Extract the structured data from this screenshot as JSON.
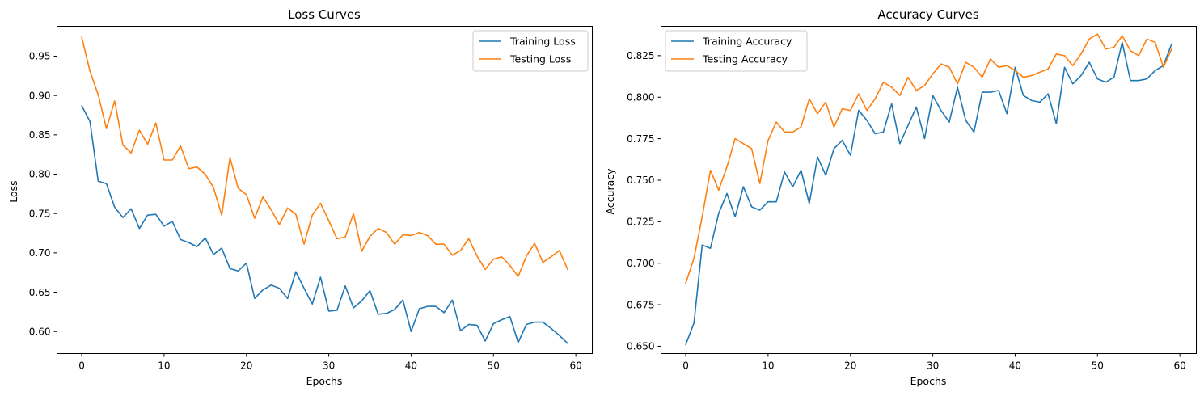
{
  "chart_data": [
    {
      "type": "line",
      "title": "Loss Curves",
      "xlabel": "Epochs",
      "ylabel": "Loss",
      "xlim": [
        -3,
        62
      ],
      "ylim": [
        0.572,
        0.988
      ],
      "xticks": [
        0,
        10,
        20,
        30,
        40,
        50,
        60
      ],
      "yticks": [
        0.6,
        0.65,
        0.7,
        0.75,
        0.8,
        0.85,
        0.9,
        0.95
      ],
      "ytick_decimals": 2,
      "grid": false,
      "legend_position": "top-right",
      "x": [
        0,
        1,
        2,
        3,
        4,
        5,
        6,
        7,
        8,
        9,
        10,
        11,
        12,
        13,
        14,
        15,
        16,
        17,
        18,
        19,
        20,
        21,
        22,
        23,
        24,
        25,
        26,
        27,
        28,
        29,
        30,
        31,
        32,
        33,
        34,
        35,
        36,
        37,
        38,
        39,
        40,
        41,
        42,
        43,
        44,
        45,
        46,
        47,
        48,
        49,
        50,
        51,
        52,
        53,
        54,
        55,
        56,
        57,
        58,
        59
      ],
      "series": [
        {
          "name": "Training Loss",
          "color": "#1f77b4",
          "values": [
            0.887,
            0.867,
            0.791,
            0.788,
            0.758,
            0.745,
            0.756,
            0.731,
            0.748,
            0.749,
            0.734,
            0.74,
            0.717,
            0.713,
            0.708,
            0.719,
            0.698,
            0.706,
            0.68,
            0.677,
            0.687,
            0.642,
            0.653,
            0.659,
            0.655,
            0.642,
            0.676,
            0.655,
            0.635,
            0.669,
            0.626,
            0.627,
            0.658,
            0.63,
            0.639,
            0.652,
            0.622,
            0.623,
            0.628,
            0.64,
            0.6,
            0.629,
            0.632,
            0.632,
            0.624,
            0.64,
            0.601,
            0.609,
            0.608,
            0.588,
            0.61,
            0.615,
            0.619,
            0.586,
            0.609,
            0.612,
            0.612,
            0.604,
            0.595,
            0.585
          ]
        },
        {
          "name": "Testing Loss",
          "color": "#ff7f0e",
          "values": [
            0.974,
            0.931,
            0.901,
            0.858,
            0.893,
            0.837,
            0.827,
            0.856,
            0.838,
            0.865,
            0.818,
            0.818,
            0.836,
            0.807,
            0.809,
            0.8,
            0.783,
            0.748,
            0.821,
            0.782,
            0.774,
            0.744,
            0.771,
            0.755,
            0.736,
            0.757,
            0.749,
            0.711,
            0.748,
            0.763,
            0.741,
            0.718,
            0.72,
            0.75,
            0.702,
            0.721,
            0.731,
            0.726,
            0.711,
            0.723,
            0.722,
            0.726,
            0.722,
            0.711,
            0.711,
            0.697,
            0.703,
            0.718,
            0.696,
            0.679,
            0.692,
            0.695,
            0.684,
            0.67,
            0.696,
            0.712,
            0.688,
            0.695,
            0.703,
            0.679
          ]
        }
      ]
    },
    {
      "type": "line",
      "title": "Accuracy Curves",
      "xlabel": "Epochs",
      "ylabel": "Accuracy",
      "xlim": [
        -3,
        62
      ],
      "ylim": [
        0.6456,
        0.8427
      ],
      "xticks": [
        0,
        10,
        20,
        30,
        40,
        50,
        60
      ],
      "yticks": [
        0.65,
        0.675,
        0.7,
        0.725,
        0.75,
        0.775,
        0.8,
        0.825
      ],
      "ytick_decimals": 3,
      "grid": false,
      "legend_position": "top-left",
      "x": [
        0,
        1,
        2,
        3,
        4,
        5,
        6,
        7,
        8,
        9,
        10,
        11,
        12,
        13,
        14,
        15,
        16,
        17,
        18,
        19,
        20,
        21,
        22,
        23,
        24,
        25,
        26,
        27,
        28,
        29,
        30,
        31,
        32,
        33,
        34,
        35,
        36,
        37,
        38,
        39,
        40,
        41,
        42,
        43,
        44,
        45,
        46,
        47,
        48,
        49,
        50,
        51,
        52,
        53,
        54,
        55,
        56,
        57,
        58,
        59
      ],
      "series": [
        {
          "name": "Training Accuracy",
          "color": "#1f77b4",
          "values": [
            0.651,
            0.664,
            0.711,
            0.709,
            0.73,
            0.742,
            0.728,
            0.746,
            0.734,
            0.732,
            0.737,
            0.737,
            0.755,
            0.746,
            0.756,
            0.736,
            0.764,
            0.753,
            0.769,
            0.774,
            0.765,
            0.792,
            0.786,
            0.778,
            0.779,
            0.796,
            0.772,
            0.783,
            0.794,
            0.775,
            0.801,
            0.792,
            0.785,
            0.806,
            0.786,
            0.779,
            0.803,
            0.803,
            0.804,
            0.79,
            0.818,
            0.801,
            0.798,
            0.797,
            0.802,
            0.784,
            0.818,
            0.808,
            0.813,
            0.821,
            0.811,
            0.809,
            0.812,
            0.833,
            0.81,
            0.81,
            0.811,
            0.816,
            0.819,
            0.832
          ]
        },
        {
          "name": "Testing Accuracy",
          "color": "#ff7f0e",
          "values": [
            0.688,
            0.703,
            0.728,
            0.756,
            0.744,
            0.758,
            0.775,
            0.772,
            0.769,
            0.748,
            0.774,
            0.785,
            0.779,
            0.779,
            0.782,
            0.799,
            0.79,
            0.797,
            0.782,
            0.793,
            0.792,
            0.802,
            0.792,
            0.799,
            0.809,
            0.806,
            0.801,
            0.812,
            0.804,
            0.807,
            0.814,
            0.82,
            0.818,
            0.808,
            0.821,
            0.818,
            0.812,
            0.823,
            0.818,
            0.819,
            0.816,
            0.812,
            0.813,
            0.815,
            0.817,
            0.826,
            0.825,
            0.819,
            0.826,
            0.835,
            0.838,
            0.829,
            0.83,
            0.837,
            0.828,
            0.825,
            0.835,
            0.833,
            0.818,
            0.829
          ]
        }
      ]
    }
  ]
}
